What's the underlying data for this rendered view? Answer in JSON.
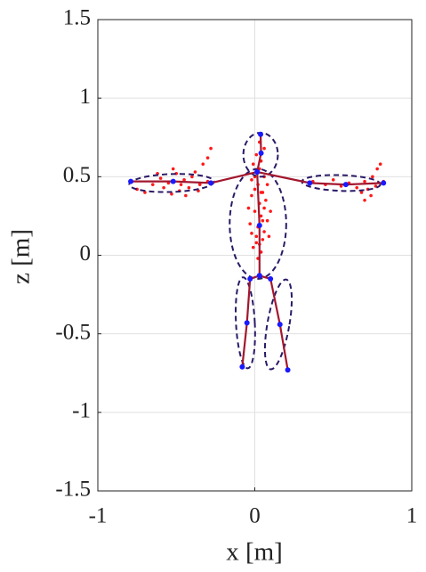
{
  "chart_data": {
    "type": "scatter",
    "xlabel": "x [m]",
    "ylabel": "z [m]",
    "xlim": [
      -1,
      1
    ],
    "ylim": [
      -1.5,
      1.5
    ],
    "xticks": [
      -1,
      0,
      1
    ],
    "yticks": [
      -1.5,
      -1,
      -0.5,
      0,
      0.5,
      1,
      1.5
    ],
    "grid": true,
    "points": {
      "color": "#ff1a1a",
      "x": [
        0.0,
        0.02,
        0.05,
        -0.02,
        0.03,
        0.06,
        0.0,
        0.04,
        0.08,
        -0.03,
        0.02,
        0.06,
        0.01,
        0.05,
        0.03,
        -0.01,
        0.04,
        0.02,
        0.07,
        -0.04,
        0.1,
        0.0,
        0.03,
        0.06,
        -0.02,
        0.04,
        0.01,
        0.06,
        0.03,
        -0.01,
        0.08,
        0.09,
        -0.02,
        0.05,
        0.01,
        0.04,
        -0.3,
        -0.35,
        -0.4,
        -0.42,
        -0.45,
        -0.5,
        -0.48,
        -0.55,
        -0.6,
        -0.58,
        -0.65,
        -0.7,
        -0.75,
        -0.52,
        -0.38,
        -0.33,
        -0.3,
        -0.28,
        -0.44,
        -0.62,
        -0.36,
        -0.47,
        -0.53,
        0.37,
        0.45,
        0.5,
        0.55,
        0.6,
        0.65,
        0.7,
        0.72,
        0.75,
        0.78,
        0.8,
        0.74,
        0.7,
        0.68,
        0.82,
        0.77
      ],
      "y": [
        0.5,
        0.45,
        0.4,
        0.38,
        0.33,
        0.3,
        0.28,
        0.25,
        0.22,
        0.2,
        0.18,
        0.15,
        0.12,
        0.1,
        0.07,
        0.05,
        0.02,
        -0.02,
        0.35,
        0.3,
        0.28,
        0.42,
        0.55,
        0.5,
        0.48,
        0.6,
        0.64,
        0.68,
        0.72,
        0.58,
        0.45,
        0.12,
        0.14,
        0.22,
        0.08,
        0.4,
        0.47,
        0.45,
        0.5,
        0.43,
        0.48,
        0.52,
        0.41,
        0.46,
        0.49,
        0.43,
        0.45,
        0.4,
        0.42,
        0.55,
        0.53,
        0.58,
        0.62,
        0.68,
        0.38,
        0.52,
        0.41,
        0.45,
        0.39,
        0.47,
        0.45,
        0.48,
        0.44,
        0.46,
        0.43,
        0.47,
        0.42,
        0.5,
        0.55,
        0.58,
        0.38,
        0.35,
        0.4,
        0.47,
        0.44
      ]
    },
    "ellipses": {
      "color": "#2a1a66",
      "items": [
        {
          "cx": 0.037,
          "cz": 0.64,
          "rx": 0.11,
          "rz": 0.14,
          "angle": 0
        },
        {
          "cx": 0.02,
          "cz": 0.2,
          "rx": 0.18,
          "rz": 0.35,
          "angle": 0
        },
        {
          "cx": -0.53,
          "cz": 0.46,
          "rx": 0.27,
          "rz": 0.057,
          "angle": 2
        },
        {
          "cx": 0.55,
          "cz": 0.46,
          "rx": 0.25,
          "rz": 0.05,
          "angle": -2
        },
        {
          "cx": -0.06,
          "cz": -0.43,
          "rx": 0.06,
          "rz": 0.29,
          "angle": 3
        },
        {
          "cx": 0.15,
          "cz": -0.44,
          "rx": 0.07,
          "rz": 0.29,
          "angle": -10
        }
      ]
    },
    "skeleton": {
      "color": "#a3172e",
      "joint_color": "#1a1aff",
      "lines": [
        {
          "x": [
            0.037,
            0.04,
            0.015,
            0.03,
            0.03
          ],
          "y": [
            0.77,
            0.65,
            0.53,
            0.19,
            -0.13
          ]
        },
        {
          "x": [
            -0.79,
            -0.52,
            -0.28,
            0.015,
            0.35,
            0.58,
            0.82
          ],
          "y": [
            0.47,
            0.47,
            0.46,
            0.53,
            0.46,
            0.45,
            0.46
          ]
        },
        {
          "x": [
            -0.08,
            -0.05,
            -0.03,
            0.03,
            0.1,
            0.16,
            0.21
          ],
          "y": [
            -0.71,
            -0.43,
            -0.15,
            -0.13,
            -0.15,
            -0.44,
            -0.73
          ]
        }
      ]
    }
  }
}
